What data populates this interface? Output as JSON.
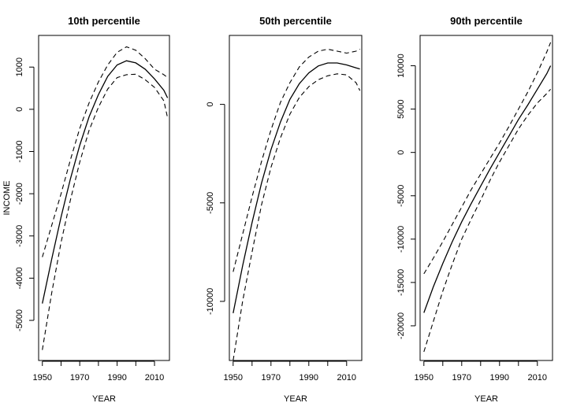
{
  "chart_data": [
    {
      "type": "line",
      "title": "10th percentile",
      "xlabel": "YEAR",
      "ylabel": "INCOME",
      "xlim": [
        1948,
        2018
      ],
      "ylim": [
        -5950,
        1750
      ],
      "xticks": [
        1950,
        1960,
        1970,
        1980,
        1990,
        2000,
        2010
      ],
      "xtick_labels": [
        "1950",
        "",
        "1970",
        "",
        "1990",
        "",
        "2010"
      ],
      "yticks": [
        -5000,
        -4000,
        -3000,
        -2000,
        -1000,
        0,
        1000
      ],
      "ytick_labels": [
        "-5000",
        "-4000",
        "-3000",
        "-2000",
        "-1000",
        "0",
        "1000"
      ],
      "x": [
        1950,
        1955,
        1960,
        1965,
        1970,
        1975,
        1980,
        1985,
        1990,
        1995,
        2000,
        2005,
        2010,
        2015,
        2017
      ],
      "series": [
        {
          "role": "fit",
          "values": [
            -4600,
            -3550,
            -2550,
            -1650,
            -850,
            -180,
            350,
            780,
            1050,
            1150,
            1100,
            950,
            720,
            450,
            270
          ]
        },
        {
          "role": "upper",
          "values": [
            -3500,
            -2750,
            -2000,
            -1200,
            -450,
            150,
            650,
            1050,
            1350,
            1480,
            1400,
            1200,
            950,
            820,
            750
          ]
        },
        {
          "role": "lower",
          "values": [
            -5700,
            -4350,
            -3150,
            -2150,
            -1250,
            -500,
            50,
            480,
            750,
            820,
            830,
            700,
            520,
            200,
            -200
          ]
        }
      ]
    },
    {
      "type": "line",
      "title": "50th percentile",
      "xlabel": "YEAR",
      "ylabel": "",
      "xlim": [
        1948,
        2018
      ],
      "ylim": [
        -13000,
        3500
      ],
      "xticks": [
        1950,
        1960,
        1970,
        1980,
        1990,
        2000,
        2010
      ],
      "xtick_labels": [
        "1950",
        "",
        "1970",
        "",
        "1990",
        "",
        "2010"
      ],
      "yticks": [
        -10000,
        -5000,
        0
      ],
      "ytick_labels": [
        "-10000",
        "-5000",
        "0"
      ],
      "x": [
        1950,
        1955,
        1960,
        1965,
        1970,
        1975,
        1980,
        1985,
        1990,
        1995,
        2000,
        2005,
        2010,
        2015,
        2017
      ],
      "series": [
        {
          "role": "fit",
          "values": [
            -10600,
            -8200,
            -6000,
            -4000,
            -2300,
            -900,
            250,
            1050,
            1600,
            1950,
            2100,
            2100,
            2000,
            1850,
            1800
          ]
        },
        {
          "role": "upper",
          "values": [
            -8500,
            -6600,
            -4700,
            -2900,
            -1300,
            100,
            1100,
            1900,
            2400,
            2700,
            2800,
            2700,
            2600,
            2700,
            2800
          ]
        },
        {
          "role": "lower",
          "values": [
            -13000,
            -10000,
            -7500,
            -5100,
            -3200,
            -1700,
            -500,
            350,
            900,
            1250,
            1450,
            1550,
            1500,
            1100,
            700
          ]
        }
      ]
    },
    {
      "type": "line",
      "title": "90th percentile",
      "xlabel": "YEAR",
      "ylabel": "",
      "xlim": [
        1948,
        2018
      ],
      "ylim": [
        -24000,
        13500
      ],
      "xticks": [
        1950,
        1960,
        1970,
        1980,
        1990,
        2000,
        2010
      ],
      "xtick_labels": [
        "1950",
        "",
        "1970",
        "",
        "1990",
        "",
        "2010"
      ],
      "yticks": [
        -20000,
        -15000,
        -10000,
        -5000,
        0,
        5000,
        10000
      ],
      "ytick_labels": [
        "-20000",
        "-15000",
        "-10000",
        "-5000",
        "0",
        "5000",
        "10000"
      ],
      "x": [
        1950,
        1955,
        1960,
        1965,
        1970,
        1975,
        1980,
        1985,
        1990,
        1995,
        2000,
        2005,
        2010,
        2015,
        2017
      ],
      "series": [
        {
          "role": "fit",
          "values": [
            -18500,
            -15500,
            -12800,
            -10300,
            -8000,
            -5900,
            -3900,
            -1900,
            0,
            1900,
            3800,
            5500,
            7300,
            9100,
            10000
          ]
        },
        {
          "role": "upper",
          "values": [
            -14000,
            -12200,
            -10300,
            -8300,
            -6300,
            -4300,
            -2500,
            -700,
            1100,
            3000,
            5000,
            7000,
            9200,
            11600,
            12700
          ]
        },
        {
          "role": "lower",
          "values": [
            -23000,
            -19500,
            -16000,
            -12900,
            -10000,
            -7700,
            -5500,
            -3200,
            -1100,
            800,
            2700,
            4300,
            5700,
            6800,
            7300
          ]
        }
      ]
    }
  ]
}
